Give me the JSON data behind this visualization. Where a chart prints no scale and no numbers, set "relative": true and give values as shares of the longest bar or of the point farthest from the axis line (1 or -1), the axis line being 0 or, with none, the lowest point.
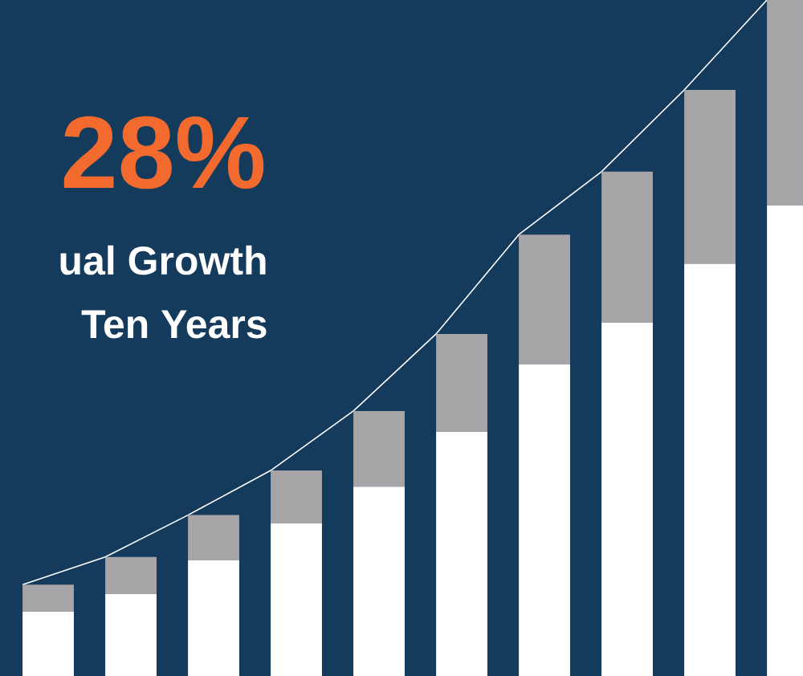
{
  "chart_data": {
    "type": "bar",
    "title": "28%",
    "annotations": [
      "ual Growth",
      "Ten Years"
    ],
    "relative": true,
    "stacked": true,
    "categories": [
      null,
      null,
      null,
      null,
      null,
      null,
      null,
      null,
      null,
      null
    ],
    "series": [
      {
        "color": "#ffffff",
        "values": [
          0.095,
          0.121,
          0.171,
          0.226,
          0.28,
          0.361,
          0.461,
          0.523,
          0.61,
          0.696
        ]
      },
      {
        "color": "#a7a5a8",
        "values": [
          0.04,
          0.055,
          0.067,
          0.078,
          0.112,
          0.145,
          0.192,
          0.223,
          0.257,
          0.304
        ]
      }
    ]
  }
}
